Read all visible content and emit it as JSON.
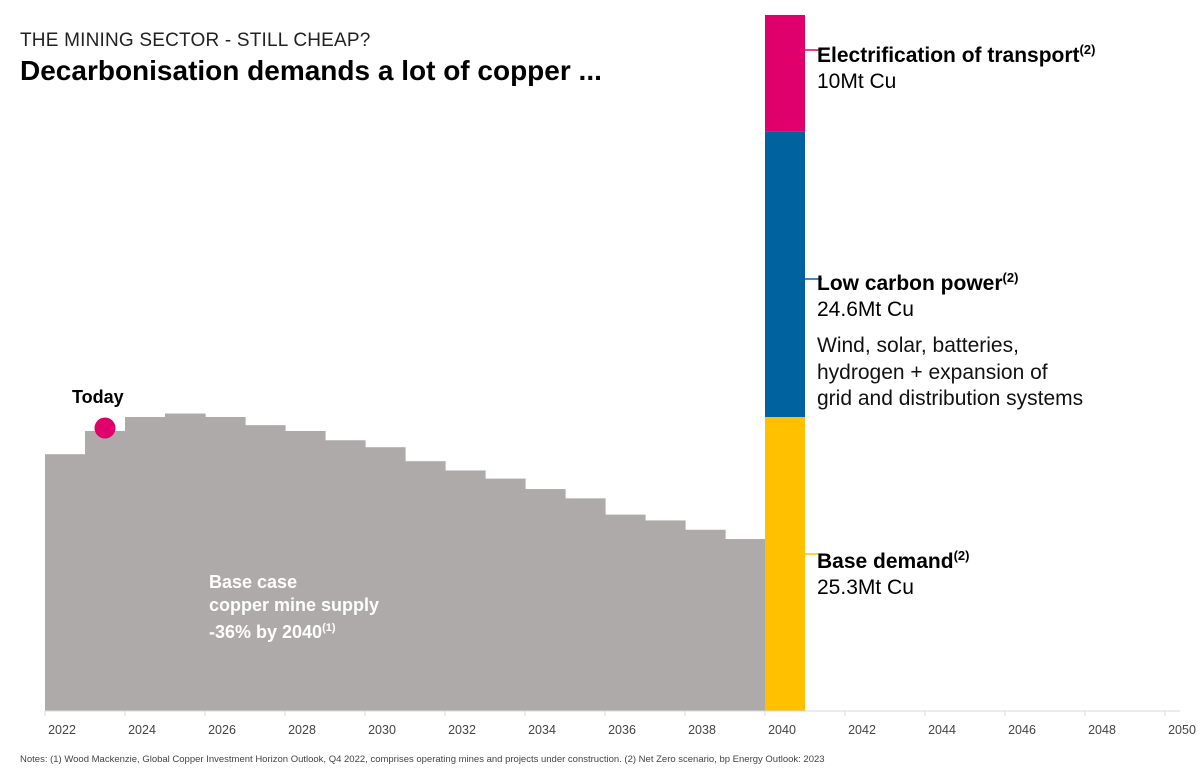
{
  "header": {
    "subtitle": "THE MINING SECTOR - STILL CHEAP?",
    "title": "Decarbonisation demands a lot of copper ..."
  },
  "chart_data": {
    "type": "bar",
    "title": "Decarbonisation demands a lot of copper ...",
    "xlim": [
      2022,
      2050
    ],
    "x_ticks": [
      "2022",
      "2024",
      "2026",
      "2028",
      "2030",
      "2032",
      "2034",
      "2036",
      "2038",
      "2040",
      "2042",
      "2044",
      "2046",
      "2048",
      "2050"
    ],
    "supply": {
      "years": [
        2022,
        2023,
        2024,
        2025,
        2026,
        2027,
        2028,
        2029,
        2030,
        2031,
        2032,
        2033,
        2034,
        2035,
        2036,
        2037,
        2038,
        2039
      ],
      "values": [
        22.1,
        24.1,
        25.3,
        25.6,
        25.3,
        24.6,
        24.1,
        23.3,
        22.7,
        21.5,
        20.7,
        20.0,
        19.1,
        18.3,
        16.9,
        16.4,
        15.6,
        14.8
      ],
      "color": "#aeaaaa",
      "unit": "Mt Cu"
    },
    "demand_2040": [
      {
        "name": "Base demand",
        "value": 25.3,
        "value_label": "25.3Mt Cu",
        "color": "#ffc000",
        "note": "(2)"
      },
      {
        "name": "Low carbon power",
        "value": 24.6,
        "value_label": "24.6Mt Cu",
        "color": "#0063a0",
        "note": "(2)"
      },
      {
        "name": "Electrification of transport",
        "value": 10,
        "value_label": "10Mt Cu",
        "color": "#e0006c",
        "note": "(2)"
      }
    ],
    "low_carbon_description": "Wind, solar, batteries, hydrogen + expansion of grid and distribution systems",
    "today": {
      "label": "Today",
      "x": 2023.5,
      "color": "#e0006c"
    },
    "annotation": {
      "line1": "Base case",
      "line2": "copper mine supply",
      "line3": "-36% by 2040",
      "note": "(1)"
    }
  },
  "notes": "Notes: (1) Wood Mackenzie, Global Copper Investment Horizon Outlook, Q4 2022, comprises operating mines and projects under construction. (2) Net Zero scenario, bp Energy Outlook: 2023"
}
